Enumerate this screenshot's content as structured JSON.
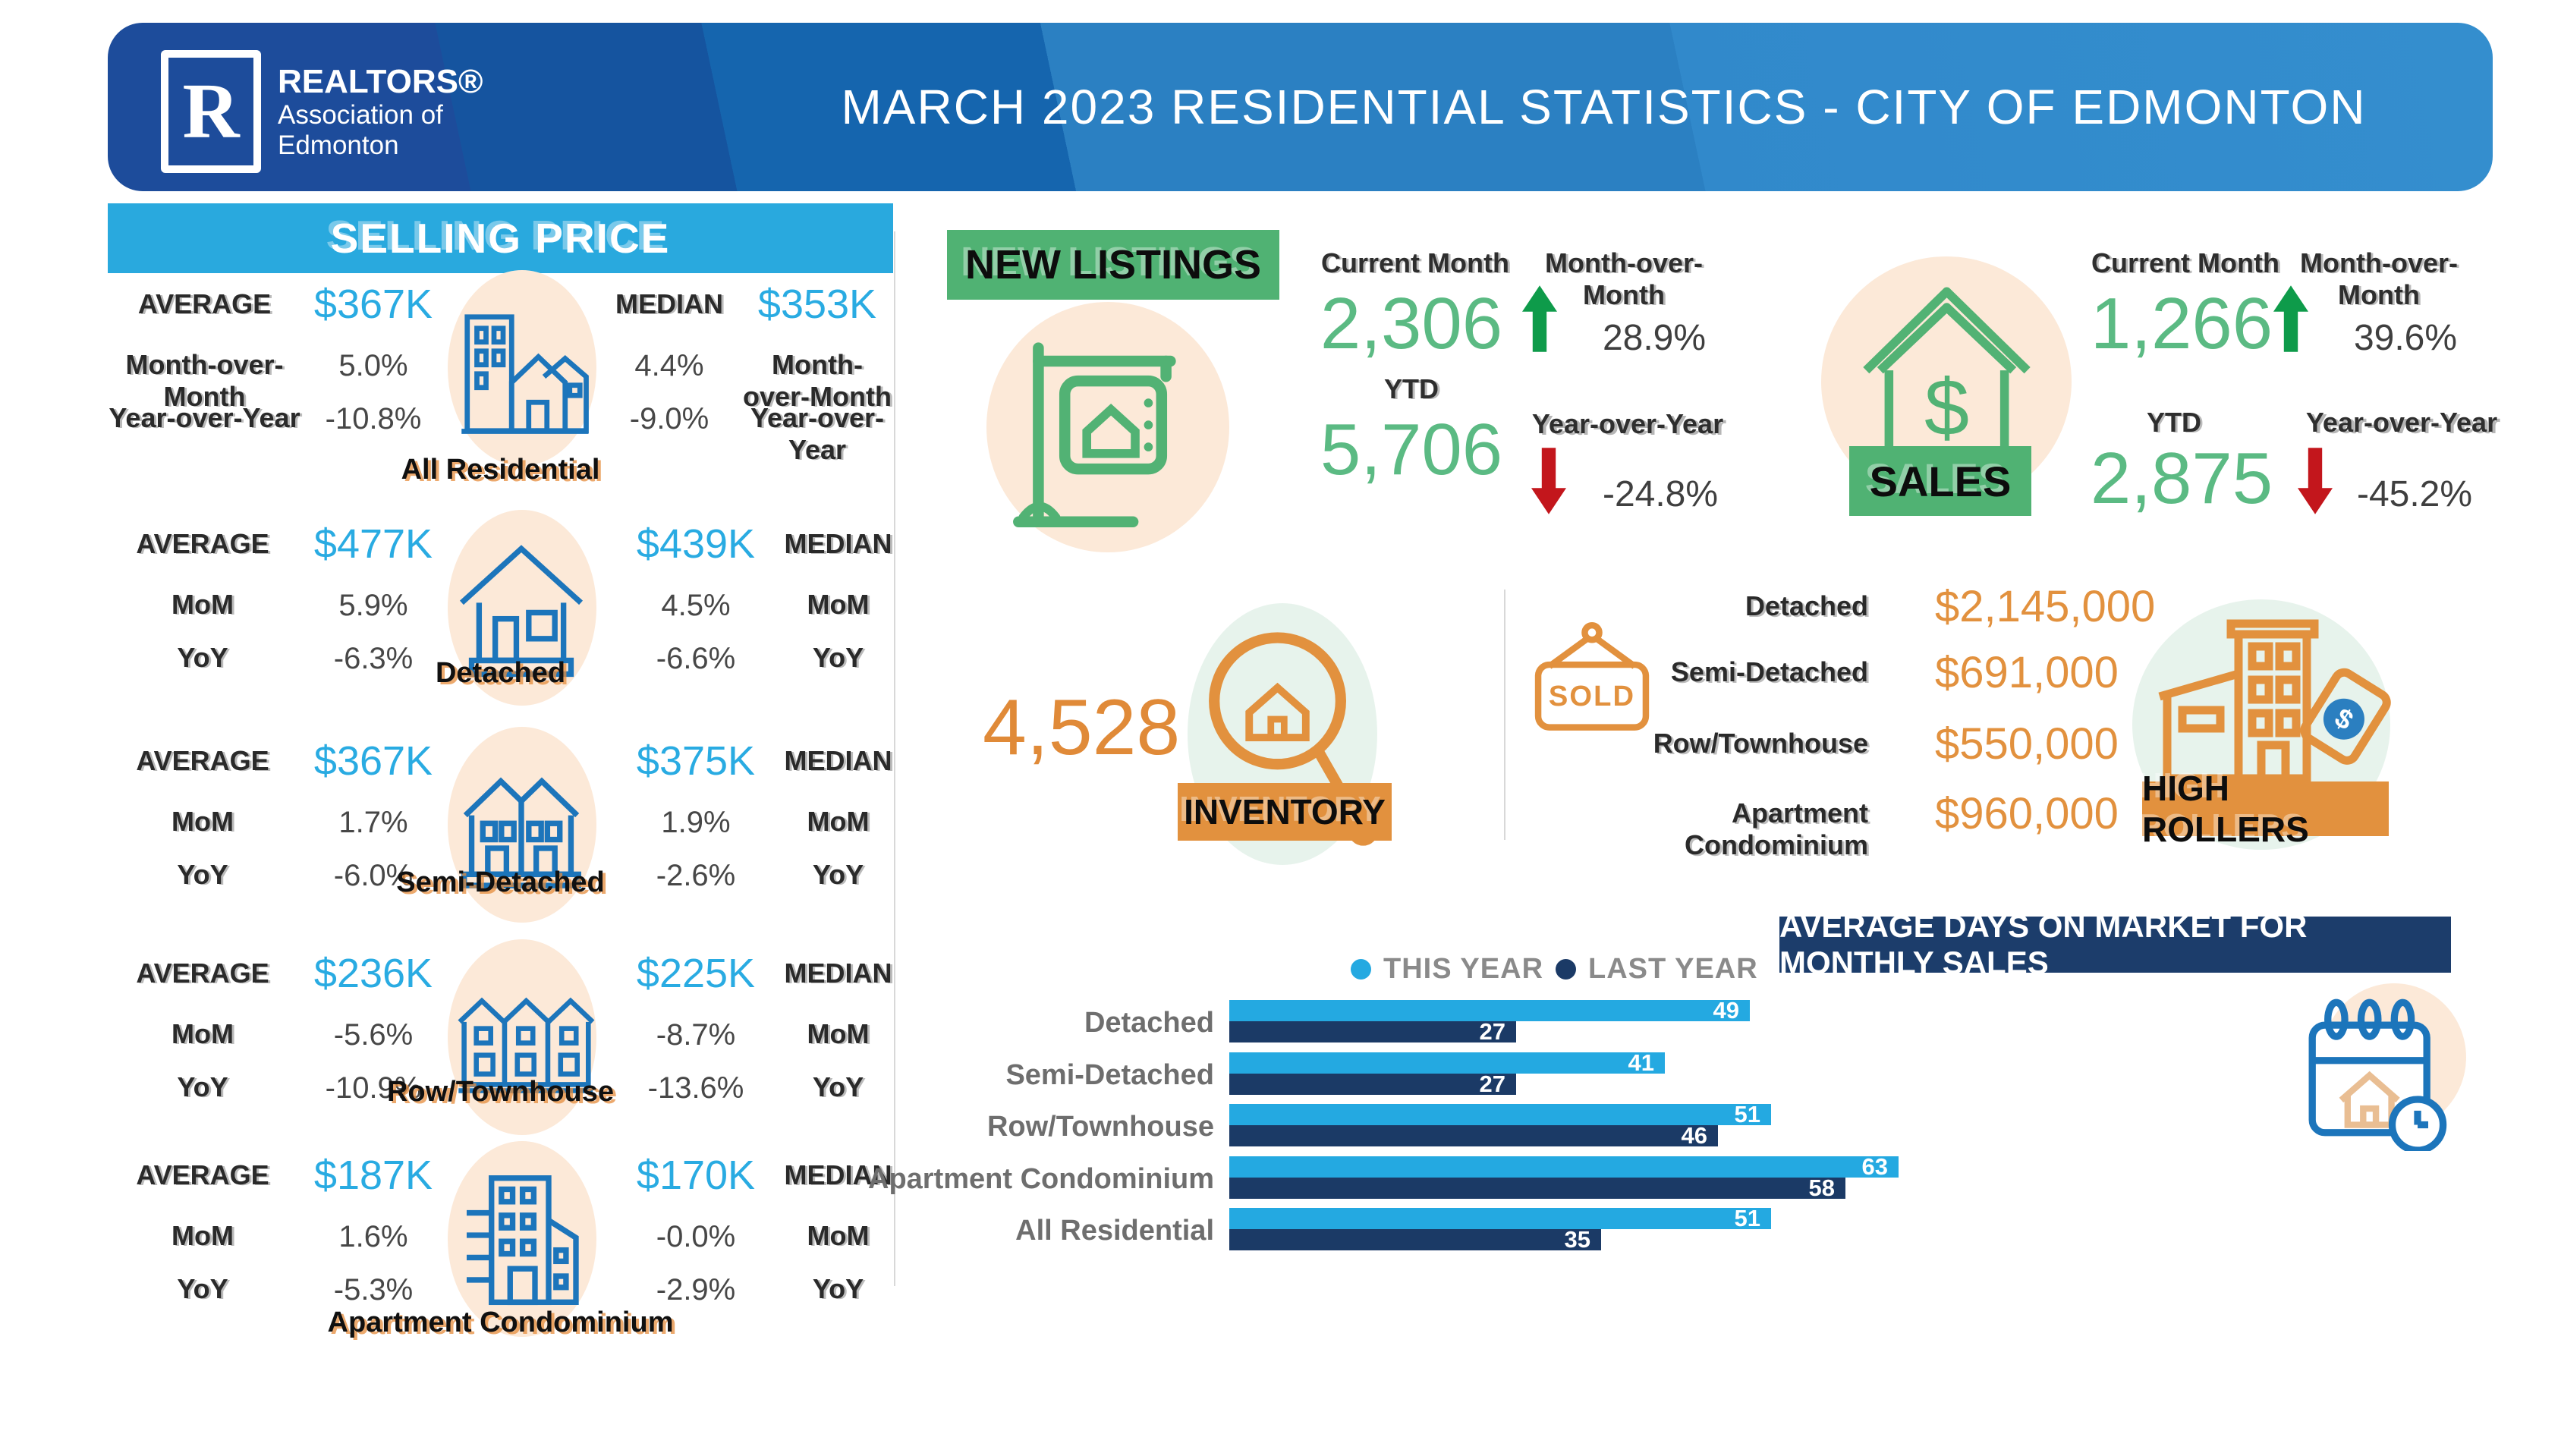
{
  "header": {
    "title": "MARCH 2023 RESIDENTIAL STATISTICS - CITY OF EDMONTON",
    "logo": {
      "r": "R",
      "line1": "REALTORS®",
      "line2": "Association of",
      "line3": "Edmonton"
    }
  },
  "selling_price": {
    "title": "SELLING PRICE",
    "rows": [
      {
        "name": "All Residential",
        "left": {
          "label": "AVERAGE",
          "value": "$367K",
          "mom_label": "Month-over-Month",
          "mom": "5.0%",
          "yoy_label": "Year-over-Year",
          "yoy": "-10.8%"
        },
        "right": {
          "label": "MEDIAN",
          "value": "$353K",
          "mom_label": "Month-over-Month",
          "mom": "4.4%",
          "yoy_label": "Year-over-Year",
          "yoy": "-9.0%"
        }
      },
      {
        "name": "Detached",
        "left": {
          "label": "AVERAGE",
          "value": "$477K",
          "mom_label": "MoM",
          "mom": "5.9%",
          "yoy_label": "YoY",
          "yoy": "-6.3%"
        },
        "right": {
          "label": "MEDIAN",
          "value": "$439K",
          "mom_label": "MoM",
          "mom": "4.5%",
          "yoy_label": "YoY",
          "yoy": "-6.6%"
        }
      },
      {
        "name": "Semi-Detached",
        "left": {
          "label": "AVERAGE",
          "value": "$367K",
          "mom_label": "MoM",
          "mom": "1.7%",
          "yoy_label": "YoY",
          "yoy": "-6.0%"
        },
        "right": {
          "label": "MEDIAN",
          "value": "$375K",
          "mom_label": "MoM",
          "mom": "1.9%",
          "yoy_label": "YoY",
          "yoy": "-2.6%"
        }
      },
      {
        "name": "Row/Townhouse",
        "left": {
          "label": "AVERAGE",
          "value": "$236K",
          "mom_label": "MoM",
          "mom": "-5.6%",
          "yoy_label": "YoY",
          "yoy": "-10.9%"
        },
        "right": {
          "label": "MEDIAN",
          "value": "$225K",
          "mom_label": "MoM",
          "mom": "-8.7%",
          "yoy_label": "YoY",
          "yoy": "-13.6%"
        }
      },
      {
        "name": "Apartment Condominium",
        "left": {
          "label": "AVERAGE",
          "value": "$187K",
          "mom_label": "MoM",
          "mom": "1.6%",
          "yoy_label": "YoY",
          "yoy": "-5.3%"
        },
        "right": {
          "label": "MEDIAN",
          "value": "$170K",
          "mom_label": "MoM",
          "mom": "-0.0%",
          "yoy_label": "YoY",
          "yoy": "-2.9%"
        }
      }
    ]
  },
  "new_listings": {
    "title": "NEW LISTINGS",
    "current_month_label": "Current Month",
    "current_month": "2,306",
    "mom_label": "Month-over-Month",
    "mom": "28.9%",
    "ytd_label": "YTD",
    "ytd": "5,706",
    "yoy_label": "Year-over-Year",
    "yoy": "-24.8%"
  },
  "sales": {
    "title": "SALES",
    "current_month_label": "Current Month",
    "current_month": "1,266",
    "mom_label": "Month-over-Month",
    "mom": "39.6%",
    "ytd_label": "YTD",
    "ytd": "2,875",
    "yoy_label": "Year-over-Year",
    "yoy": "-45.2%"
  },
  "inventory": {
    "title": "INVENTORY",
    "value": "4,528"
  },
  "high_rollers": {
    "title": "HIGH ROLLERS",
    "sold_sign": "SOLD",
    "items": [
      {
        "label": "Detached",
        "price": "$2,145,000"
      },
      {
        "label": "Semi-Detached",
        "price": "$691,000"
      },
      {
        "label": "Row/Townhouse",
        "price": "$550,000"
      },
      {
        "label": "Apartment Condominium",
        "price": "$960,000"
      }
    ]
  },
  "days_on_market": {
    "title": "AVERAGE DAYS ON MARKET FOR MONTHLY SALES",
    "legend": [
      {
        "label": "THIS YEAR"
      },
      {
        "label": "LAST YEAR"
      }
    ]
  },
  "chart_data": {
    "type": "bar",
    "orientation": "horizontal",
    "title": "AVERAGE DAYS ON MARKET FOR MONTHLY SALES",
    "categories": [
      "Detached",
      "Semi-Detached",
      "Row/Townhouse",
      "Apartment Condominium",
      "All Residential"
    ],
    "series": [
      {
        "name": "THIS YEAR",
        "color": "#24A9E1",
        "values": [
          49,
          41,
          51,
          63,
          51
        ]
      },
      {
        "name": "LAST YEAR",
        "color": "#1B3A66",
        "values": [
          27,
          27,
          46,
          58,
          35
        ]
      }
    ],
    "value_labels": true,
    "xlim": [
      0,
      70
    ],
    "gridlines": false,
    "legend_position": "top"
  },
  "colors": {
    "light_blue": "#29A9DE",
    "value_blue": "#29ABE2",
    "green_badge": "#50B273",
    "green_number": "#5BBA83",
    "green_arrow": "#0E9B4A",
    "red_arrow": "#C3161C",
    "orange": "#E2913E",
    "navy": "#1C3D6B",
    "icon_blue": "#1C75BB",
    "peach": "#FCE9D8"
  }
}
